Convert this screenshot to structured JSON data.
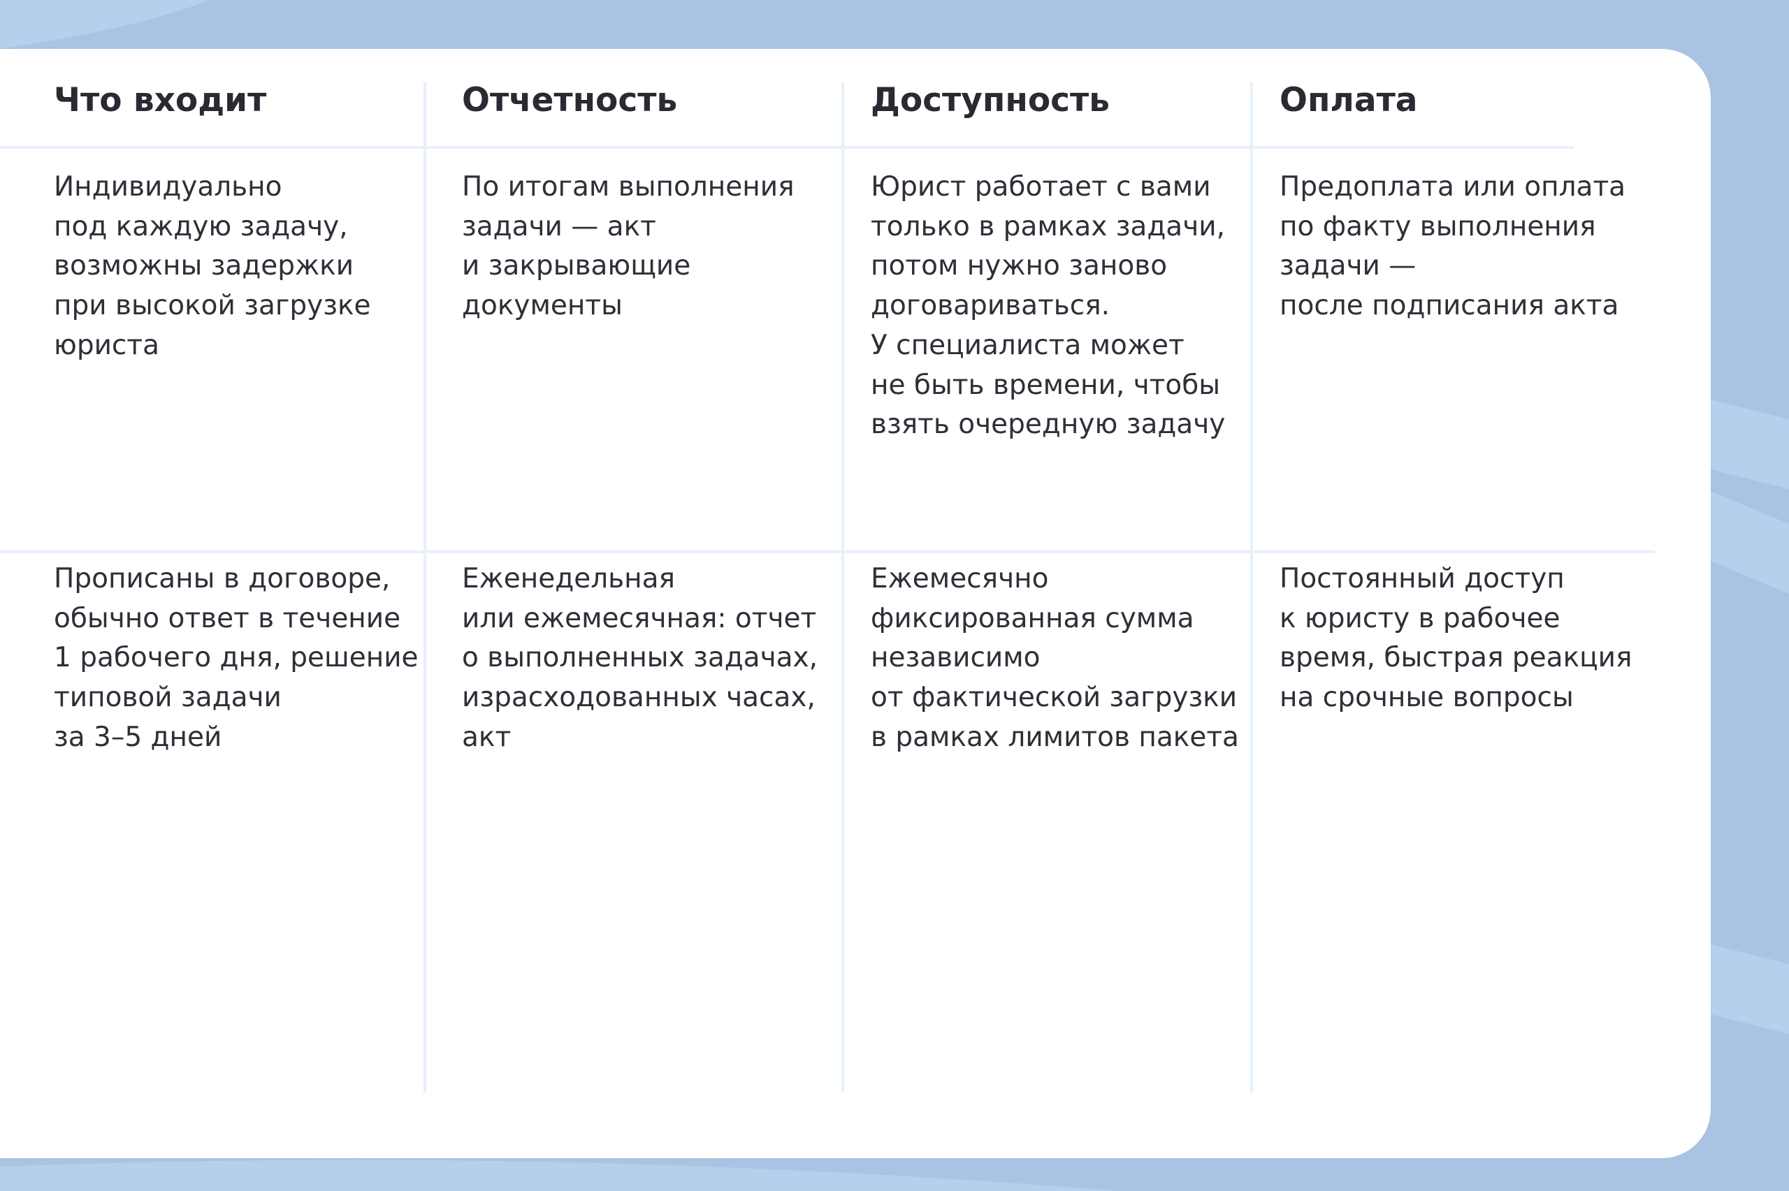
{
  "colors": {
    "background": "#a9c3e3",
    "card": "#ffffff",
    "divider": "#e6f1fc",
    "text": "#2a2a33"
  },
  "headers": [
    "Что входит",
    "Отчетность",
    "Доступность",
    "Оплата"
  ],
  "rows": [
    [
      "Индивидуально\nпод каждую задачу,\nвозможны задержки\nпри высокой загрузке\nюриста",
      "По итогам выполнения\nзадачи — акт\nи закрывающие\nдокументы",
      "Юрист работает с вами\nтолько в рамках задачи,\nпотом нужно заново\nдоговариваться.\nУ специалиста может\nне быть времени, чтобы\nвзять очередную задачу",
      "Предоплата или оплата\nпо факту выполнения\nзадачи —\nпосле подписания акта"
    ],
    [
      "Прописаны в договоре,\nобычно ответ в течение\n1 рабочего дня, решение\nтиповой задачи\nза 3–5 дней",
      "Еженедельная\nили ежемесячная: отчет\nо выполненных задачах,\nизрасходованных часах,\nакт",
      "Ежемесячно\nфиксированная сумма\nнезависимо\nот фактической загрузки\nв рамках лимитов пакета",
      "Постоянный доступ\nк юристу в рабочее\nвремя, быстрая реакция\nна срочные вопросы"
    ]
  ]
}
